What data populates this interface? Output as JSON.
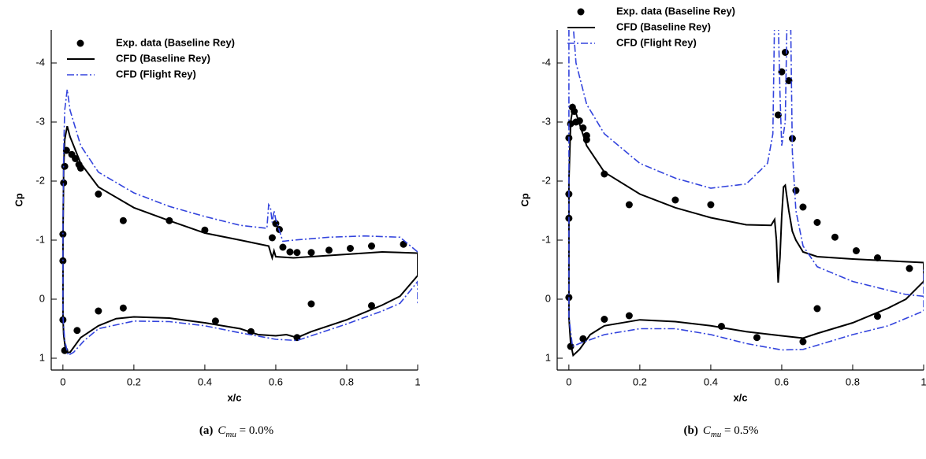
{
  "chart_data": [
    {
      "type": "line",
      "caption_label": "(a)",
      "caption_symbol": "C",
      "caption_subscript": "mu",
      "caption_rest": " = 0.0%",
      "x_label": "x/c",
      "y_label": "Cp",
      "xlim": [
        -0.033,
        1
      ],
      "ylim": [
        -4.56,
        1.2
      ],
      "y_inverted": true,
      "xticks": [
        0,
        0.2,
        0.4,
        0.6,
        0.8,
        1
      ],
      "yticks": [
        -4,
        -3,
        -2,
        -1,
        0,
        1
      ],
      "legend": "upper left",
      "series": [
        {
          "name": "Exp. data (Baseline Rey)",
          "style": "markers",
          "color": "#000000",
          "x": [
            0,
            0,
            0.002,
            0.005,
            0.01,
            0.025,
            0.035,
            0.045,
            0.05,
            0.1,
            0.17,
            0.3,
            0.4,
            0.59,
            0.6,
            0.61,
            0.62,
            0.64,
            0.66,
            0.7,
            0.75,
            0.81,
            0.87,
            0.96,
            0,
            0.005,
            0.04,
            0.1,
            0.17,
            0.43,
            0.53,
            0.66,
            0.7,
            0.87
          ],
          "values": [
            -0.65,
            -1.1,
            -1.97,
            -2.25,
            -2.52,
            -2.45,
            -2.38,
            -2.28,
            -2.22,
            -1.78,
            -1.33,
            -1.33,
            -1.17,
            -1.04,
            -1.28,
            -1.18,
            -0.88,
            -0.8,
            -0.79,
            -0.79,
            -0.83,
            -0.86,
            -0.9,
            -0.93,
            0.35,
            0.87,
            0.53,
            0.2,
            0.15,
            0.37,
            0.55,
            0.65,
            0.08,
            0.11
          ]
        },
        {
          "name": "CFD (Baseline Rey)",
          "style": "solid",
          "color": "#000000",
          "x": [
            1,
            0.9,
            0.8,
            0.7,
            0.65,
            0.6,
            0.595,
            0.59,
            0.58,
            0.5,
            0.4,
            0.3,
            0.2,
            0.1,
            0.05,
            0.02,
            0.012,
            0.005,
            0.002,
            0,
            0,
            0.002,
            0.008,
            0.02,
            0.05,
            0.1,
            0.15,
            0.2,
            0.3,
            0.4,
            0.5,
            0.55,
            0.6,
            0.63,
            0.66,
            0.7,
            0.8,
            0.9,
            0.95,
            1,
            1
          ],
          "values": [
            -0.78,
            -0.8,
            -0.76,
            -0.72,
            -0.7,
            -0.72,
            -0.82,
            -0.7,
            -0.9,
            -1.0,
            -1.12,
            -1.33,
            -1.55,
            -1.9,
            -2.3,
            -2.75,
            -2.93,
            -2.7,
            -2.2,
            -1.0,
            0.3,
            0.6,
            0.9,
            0.9,
            0.65,
            0.45,
            0.33,
            0.3,
            0.32,
            0.4,
            0.5,
            0.6,
            0.62,
            0.6,
            0.65,
            0.55,
            0.35,
            0.1,
            -0.05,
            -0.4,
            -0.78
          ]
        },
        {
          "name": "CFD (Flight Rey)",
          "style": "dashdot",
          "color": "#3344dd",
          "x": [
            1,
            0.95,
            0.85,
            0.75,
            0.65,
            0.62,
            0.6,
            0.595,
            0.59,
            0.585,
            0.58,
            0.575,
            0.5,
            0.4,
            0.3,
            0.2,
            0.1,
            0.05,
            0.02,
            0.012,
            0.005,
            0.002,
            0,
            0,
            0.005,
            0.015,
            0.03,
            0.06,
            0.1,
            0.2,
            0.3,
            0.4,
            0.5,
            0.6,
            0.66,
            0.7,
            0.8,
            0.9,
            0.95,
            1,
            1
          ],
          "values": [
            -0.8,
            -1.05,
            -1.07,
            -1.05,
            -1.0,
            -0.98,
            -1.35,
            -1.5,
            -1.3,
            -1.55,
            -1.6,
            -1.2,
            -1.25,
            -1.4,
            -1.57,
            -1.8,
            -2.15,
            -2.6,
            -3.2,
            -3.55,
            -3.2,
            -2.5,
            -1.2,
            0.3,
            0.7,
            0.95,
            0.9,
            0.7,
            0.5,
            0.37,
            0.38,
            0.45,
            0.57,
            0.68,
            0.7,
            0.62,
            0.42,
            0.2,
            0.07,
            -0.3,
            0.1
          ]
        }
      ]
    },
    {
      "type": "line",
      "caption_label": "(b)",
      "caption_symbol": "C",
      "caption_subscript": "mu",
      "caption_rest": " = 0.5%",
      "x_label": "x/c",
      "y_label": "Cp",
      "xlim": [
        -0.033,
        1
      ],
      "ylim": [
        -4.56,
        1.2
      ],
      "y_inverted": true,
      "xticks": [
        0,
        0.2,
        0.4,
        0.6,
        0.8,
        1
      ],
      "yticks": [
        -4,
        -3,
        -2,
        -1,
        0,
        1
      ],
      "legend": "top",
      "series": [
        {
          "name": "Exp. data (Baseline Rey)",
          "style": "markers",
          "color": "#000000",
          "x": [
            0,
            0,
            0,
            0,
            0.005,
            0.01,
            0.015,
            0.02,
            0.03,
            0.04,
            0.05,
            0.05,
            0.1,
            0.17,
            0.3,
            0.4,
            0.59,
            0.6,
            0.61,
            0.62,
            0.63,
            0.64,
            0.66,
            0.7,
            0.75,
            0.81,
            0.87,
            0.96,
            0.005,
            0.04,
            0.1,
            0.17,
            0.43,
            0.53,
            0.66,
            0.7,
            0.87
          ],
          "values": [
            -0.03,
            -1.37,
            -1.78,
            -2.73,
            -2.97,
            -3.25,
            -3.18,
            -3.0,
            -3.02,
            -2.9,
            -2.77,
            -2.7,
            -2.12,
            -1.6,
            -1.68,
            -1.6,
            -3.12,
            -3.85,
            -4.18,
            -3.7,
            -2.72,
            -1.84,
            -1.56,
            -1.3,
            -1.05,
            -0.82,
            -0.7,
            -0.52,
            0.8,
            0.67,
            0.34,
            0.28,
            0.46,
            0.65,
            0.72,
            0.16,
            0.29
          ]
        },
        {
          "name": "CFD (Baseline Rey)",
          "style": "solid",
          "color": "#000000",
          "x": [
            1,
            0.9,
            0.8,
            0.7,
            0.66,
            0.64,
            0.63,
            0.62,
            0.61,
            0.605,
            0.6,
            0.595,
            0.59,
            0.585,
            0.58,
            0.57,
            0.5,
            0.4,
            0.3,
            0.2,
            0.1,
            0.05,
            0.02,
            0.012,
            0.005,
            0,
            0,
            0.005,
            0.012,
            0.03,
            0.06,
            0.1,
            0.2,
            0.3,
            0.4,
            0.5,
            0.6,
            0.66,
            0.7,
            0.8,
            0.9,
            0.95,
            1,
            1
          ],
          "values": [
            -0.62,
            -0.65,
            -0.68,
            -0.72,
            -0.8,
            -1.0,
            -1.15,
            -1.5,
            -1.93,
            -1.9,
            -1.4,
            -0.7,
            -0.28,
            -1.0,
            -1.35,
            -1.25,
            -1.26,
            -1.38,
            -1.55,
            -1.78,
            -2.15,
            -2.6,
            -3.15,
            -3.27,
            -3.0,
            -2.0,
            0.3,
            0.75,
            0.95,
            0.85,
            0.6,
            0.45,
            0.35,
            0.38,
            0.45,
            0.55,
            0.62,
            0.66,
            0.58,
            0.4,
            0.15,
            0.0,
            -0.3,
            -0.62
          ]
        },
        {
          "name": "CFD (Flight Rey)",
          "style": "dashdot",
          "color": "#3344dd",
          "x": [
            1,
            0.95,
            0.9,
            0.8,
            0.7,
            0.66,
            0.64,
            0.63,
            0.625,
            0.615,
            0.61,
            0.6,
            0.595,
            0.59,
            0.58,
            0.575,
            0.56,
            0.5,
            0.4,
            0.3,
            0.2,
            0.1,
            0.05,
            0.02,
            0.01,
            0,
            0,
            0.01,
            0.03,
            0.1,
            0.2,
            0.3,
            0.4,
            0.5,
            0.6,
            0.66,
            0.7,
            0.8,
            0.9,
            1,
            1
          ],
          "values": [
            -0.05,
            -0.08,
            -0.15,
            -0.3,
            -0.55,
            -0.9,
            -1.5,
            -2.5,
            -4.8,
            -4.8,
            -3.0,
            -2.6,
            -3.5,
            -4.8,
            -4.8,
            -2.8,
            -2.3,
            -1.95,
            -1.88,
            -2.05,
            -2.3,
            -2.8,
            -3.3,
            -4.0,
            -4.8,
            -4.8,
            0.3,
            0.8,
            0.75,
            0.6,
            0.5,
            0.5,
            0.6,
            0.75,
            0.86,
            0.85,
            0.78,
            0.6,
            0.45,
            0.2,
            -0.5
          ]
        }
      ]
    }
  ]
}
